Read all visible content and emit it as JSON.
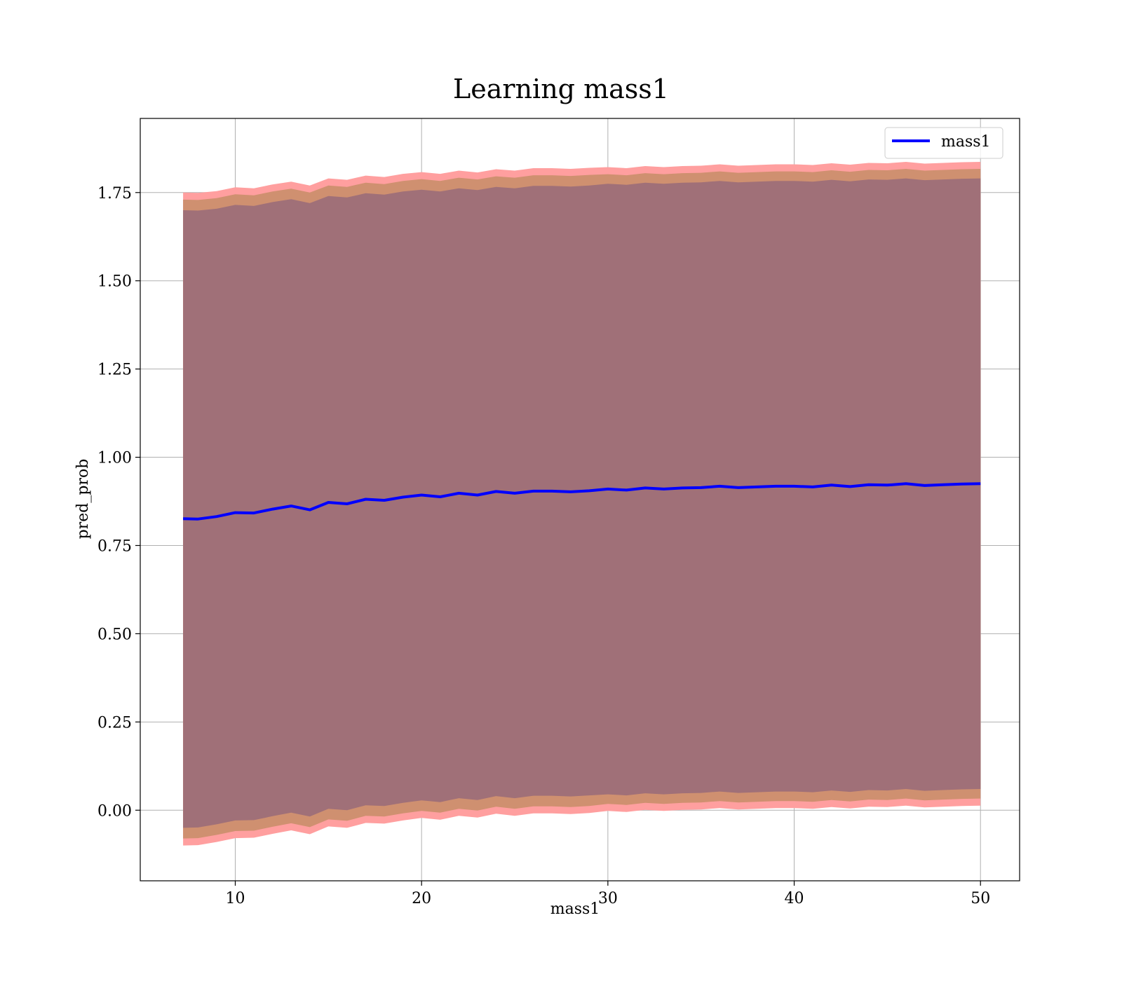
{
  "chart_data": {
    "type": "line",
    "title": "Learning mass1",
    "xlabel": "mass1",
    "ylabel": "pred_prob",
    "xlim": [
      4.9,
      52.1
    ],
    "ylim": [
      -0.2,
      1.96
    ],
    "xticks": [
      10,
      20,
      30,
      40,
      50
    ],
    "yticks": [
      0.0,
      0.25,
      0.5,
      0.75,
      1.0,
      1.25,
      1.5,
      1.75
    ],
    "xtick_labels": [
      "10",
      "20",
      "30",
      "40",
      "50"
    ],
    "ytick_labels": [
      "0.00",
      "0.25",
      "0.50",
      "0.75",
      "1.00",
      "1.25",
      "1.50",
      "1.75"
    ],
    "grid": true,
    "legend": {
      "position": "top-right",
      "entries": [
        "mass1"
      ]
    },
    "series": [
      {
        "name": "mass1",
        "color": "#0000ff",
        "x": [
          7.2,
          8,
          9,
          10,
          11,
          12,
          13,
          14,
          15,
          16,
          17,
          18,
          19,
          20,
          21,
          22,
          23,
          24,
          25,
          26,
          27,
          28,
          29,
          30,
          31,
          32,
          33,
          34,
          35,
          36,
          37,
          38,
          39,
          40,
          41,
          42,
          43,
          44,
          45,
          46,
          47,
          48,
          49,
          50
        ],
        "y": [
          0.826,
          0.825,
          0.832,
          0.843,
          0.842,
          0.853,
          0.862,
          0.851,
          0.872,
          0.868,
          0.881,
          0.878,
          0.887,
          0.893,
          0.888,
          0.898,
          0.893,
          0.903,
          0.898,
          0.904,
          0.904,
          0.902,
          0.905,
          0.91,
          0.907,
          0.913,
          0.91,
          0.913,
          0.914,
          0.918,
          0.914,
          0.916,
          0.918,
          0.918,
          0.916,
          0.921,
          0.917,
          0.922,
          0.921,
          0.925,
          0.92,
          0.922,
          0.924,
          0.925
        ],
        "band_outer": {
          "lower": [
            -0.1,
            -0.099,
            -0.09,
            -0.079,
            -0.078,
            -0.067,
            -0.057,
            -0.068,
            -0.046,
            -0.05,
            -0.036,
            -0.038,
            -0.029,
            -0.022,
            -0.027,
            -0.016,
            -0.021,
            -0.01,
            -0.016,
            -0.009,
            -0.009,
            -0.011,
            -0.008,
            -0.002,
            -0.005,
            0.001,
            -0.002,
            0.001,
            0.002,
            0.006,
            0.002,
            0.004,
            0.006,
            0.006,
            0.004,
            0.009,
            0.005,
            0.01,
            0.009,
            0.013,
            0.008,
            0.01,
            0.012,
            0.013
          ],
          "upper": [
            1.75,
            1.749,
            1.754,
            1.765,
            1.762,
            1.773,
            1.781,
            1.77,
            1.79,
            1.786,
            1.798,
            1.794,
            1.803,
            1.808,
            1.803,
            1.812,
            1.807,
            1.816,
            1.812,
            1.819,
            1.819,
            1.817,
            1.82,
            1.822,
            1.819,
            1.825,
            1.822,
            1.825,
            1.826,
            1.83,
            1.826,
            1.828,
            1.83,
            1.83,
            1.828,
            1.833,
            1.829,
            1.834,
            1.833,
            1.837,
            1.832,
            1.834,
            1.836,
            1.837
          ]
        },
        "band_inner": {
          "lower": [
            -0.05,
            -0.049,
            -0.04,
            -0.029,
            -0.028,
            -0.017,
            -0.007,
            -0.018,
            0.004,
            0.0,
            0.014,
            0.012,
            0.021,
            0.028,
            0.023,
            0.034,
            0.029,
            0.04,
            0.034,
            0.041,
            0.041,
            0.039,
            0.042,
            0.045,
            0.042,
            0.048,
            0.045,
            0.048,
            0.049,
            0.053,
            0.049,
            0.051,
            0.053,
            0.053,
            0.051,
            0.056,
            0.052,
            0.057,
            0.056,
            0.06,
            0.055,
            0.057,
            0.059,
            0.06
          ],
          "upper": [
            1.7,
            1.699,
            1.704,
            1.715,
            1.712,
            1.723,
            1.731,
            1.72,
            1.74,
            1.736,
            1.748,
            1.744,
            1.753,
            1.758,
            1.753,
            1.762,
            1.757,
            1.766,
            1.762,
            1.769,
            1.769,
            1.767,
            1.77,
            1.775,
            1.772,
            1.778,
            1.775,
            1.778,
            1.779,
            1.783,
            1.779,
            1.781,
            1.783,
            1.783,
            1.781,
            1.786,
            1.782,
            1.787,
            1.786,
            1.79,
            1.785,
            1.787,
            1.789,
            1.79
          ]
        }
      }
    ],
    "colors": {
      "band_outer": "#ff9f9f",
      "band_mid": "#cf9070",
      "band_inner": "#a07078",
      "line": "#0000ff"
    }
  }
}
